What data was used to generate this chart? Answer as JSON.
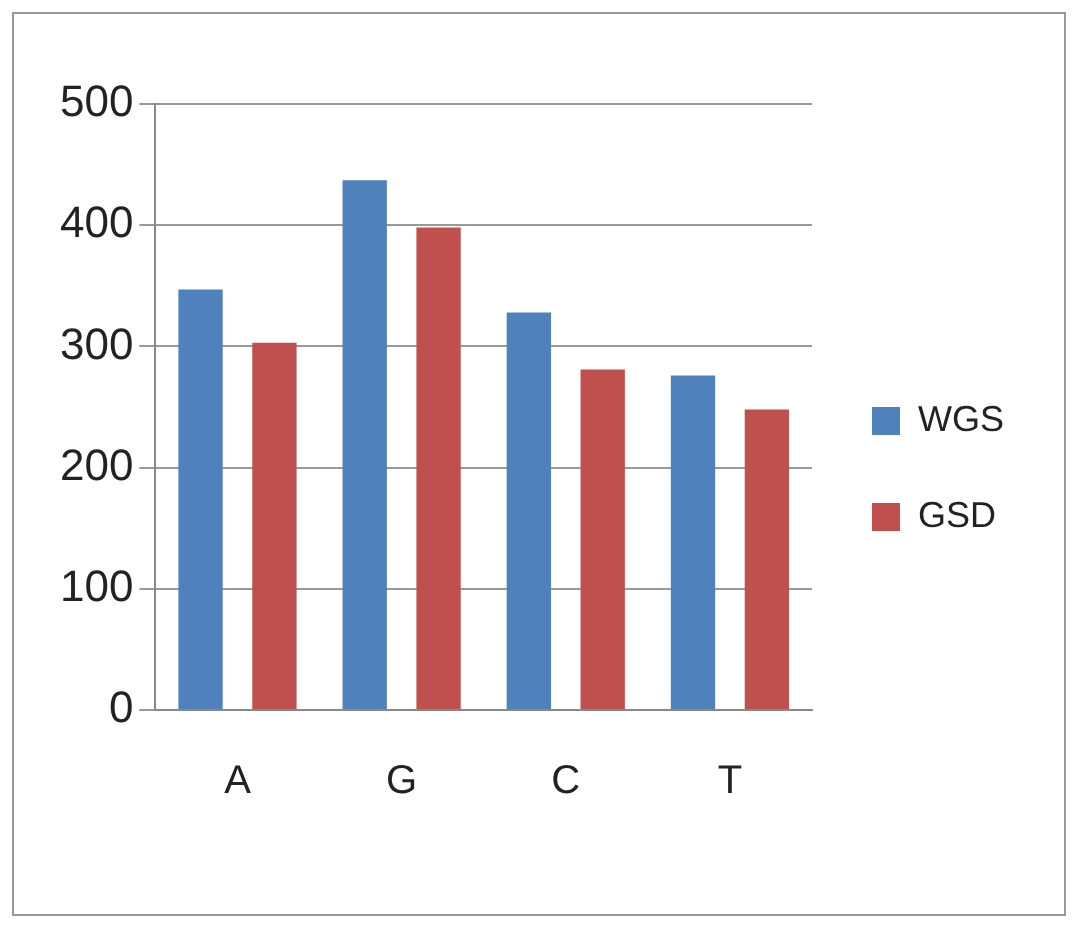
{
  "chart_data": {
    "type": "bar",
    "categories": [
      "A",
      "G",
      "C",
      "T"
    ],
    "series": [
      {
        "name": "WGS",
        "color": "#4f81bd",
        "values": [
          347,
          437,
          328,
          276
        ]
      },
      {
        "name": "GSD",
        "color": "#c0504d",
        "values": [
          303,
          398,
          281,
          248
        ]
      }
    ],
    "ylim": [
      0,
      500
    ],
    "yticks": [
      0,
      100,
      200,
      300,
      400,
      500
    ],
    "grid": "y",
    "legend": "right"
  }
}
